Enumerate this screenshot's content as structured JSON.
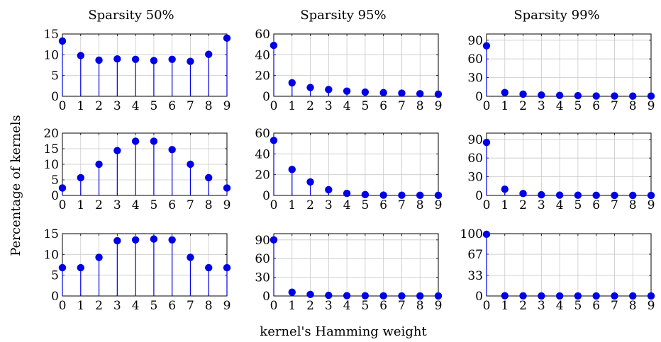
{
  "figure": {
    "xlabel": "kernel's Hamming weight",
    "ylabel": "Percentage of kernels",
    "column_titles": [
      "Sparsity 50%",
      "Sparsity 95%",
      "Sparsity 99%"
    ]
  },
  "colors": {
    "series": "#0000e6",
    "grid": "#c8c8c8"
  },
  "chart_data": [
    {
      "type": "stem",
      "row": 0,
      "col": 0,
      "title": "Sparsity 50%",
      "grid": true,
      "x": [
        0,
        1,
        2,
        3,
        4,
        5,
        6,
        7,
        8,
        9
      ],
      "ylim": [
        0,
        15
      ],
      "yticks": [
        0,
        5,
        10,
        15
      ],
      "values": [
        13.3,
        9.8,
        8.7,
        9.0,
        8.9,
        8.6,
        8.9,
        8.4,
        10.1,
        14.0
      ]
    },
    {
      "type": "stem",
      "row": 0,
      "col": 1,
      "title": "Sparsity 95%",
      "grid": true,
      "x": [
        0,
        1,
        2,
        3,
        4,
        5,
        6,
        7,
        8,
        9
      ],
      "ylim": [
        0,
        60
      ],
      "yticks": [
        0,
        20,
        40,
        60
      ],
      "values": [
        49,
        13,
        8.5,
        6.5,
        5,
        4,
        3.5,
        3,
        2.5,
        2
      ]
    },
    {
      "type": "stem",
      "row": 0,
      "col": 2,
      "title": "Sparsity 99%",
      "grid": true,
      "x": [
        0,
        1,
        2,
        3,
        4,
        5,
        6,
        7,
        8,
        9
      ],
      "ylim": [
        0,
        100
      ],
      "yticks": [
        0,
        30,
        60,
        90
      ],
      "values": [
        81,
        6,
        3.5,
        2,
        1.5,
        1,
        0.5,
        0.5,
        0.3,
        0.3
      ]
    },
    {
      "type": "stem",
      "row": 1,
      "col": 0,
      "grid": true,
      "x": [
        0,
        1,
        2,
        3,
        4,
        5,
        6,
        7,
        8,
        9
      ],
      "ylim": [
        0,
        20
      ],
      "yticks": [
        0,
        5,
        10,
        15,
        20
      ],
      "values": [
        2.4,
        5.7,
        10.0,
        14.4,
        17.4,
        17.4,
        14.7,
        10.0,
        5.7,
        2.4
      ]
    },
    {
      "type": "stem",
      "row": 1,
      "col": 1,
      "grid": true,
      "x": [
        0,
        1,
        2,
        3,
        4,
        5,
        6,
        7,
        8,
        9
      ],
      "ylim": [
        0,
        60
      ],
      "yticks": [
        0,
        20,
        40,
        60
      ],
      "values": [
        53,
        25,
        13,
        5.5,
        2,
        0.8,
        0.3,
        0.2,
        0.1,
        0.1
      ]
    },
    {
      "type": "stem",
      "row": 1,
      "col": 2,
      "grid": true,
      "x": [
        0,
        1,
        2,
        3,
        4,
        5,
        6,
        7,
        8,
        9
      ],
      "ylim": [
        0,
        100
      ],
      "yticks": [
        0,
        30,
        60,
        90
      ],
      "values": [
        85,
        10,
        3,
        1,
        0.5,
        0.3,
        0.2,
        0.1,
        0.1,
        0.1
      ]
    },
    {
      "type": "stem",
      "row": 2,
      "col": 0,
      "grid": true,
      "x": [
        0,
        1,
        2,
        3,
        4,
        5,
        6,
        7,
        8,
        9
      ],
      "ylim": [
        0,
        15
      ],
      "yticks": [
        0,
        5,
        10,
        15
      ],
      "values": [
        6.8,
        6.8,
        9.3,
        13.3,
        13.5,
        13.7,
        13.5,
        9.3,
        6.8,
        6.8
      ]
    },
    {
      "type": "stem",
      "row": 2,
      "col": 1,
      "grid": true,
      "x": [
        0,
        1,
        2,
        3,
        4,
        5,
        6,
        7,
        8,
        9
      ],
      "ylim": [
        0,
        100
      ],
      "yticks": [
        0,
        30,
        60,
        90
      ],
      "values": [
        90,
        6,
        2.5,
        1,
        0.5,
        0.3,
        0.2,
        0.1,
        0.1,
        0.1
      ]
    },
    {
      "type": "stem",
      "row": 2,
      "col": 2,
      "grid": true,
      "x": [
        0,
        1,
        2,
        3,
        4,
        5,
        6,
        7,
        8,
        9
      ],
      "ylim": [
        0,
        100
      ],
      "yticks": [
        0,
        33,
        67,
        100
      ],
      "values": [
        99,
        0.3,
        0.2,
        0.1,
        0.1,
        0.1,
        0.1,
        0.1,
        0.1,
        0.1
      ]
    }
  ]
}
